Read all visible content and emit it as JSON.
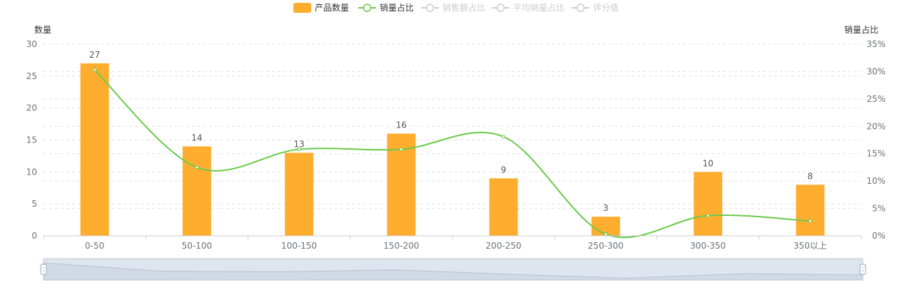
{
  "legend": [
    {
      "name": "产品数量",
      "type": "bar",
      "color": "#FFAD2E",
      "active": true
    },
    {
      "name": "销量占比",
      "type": "line",
      "color": "#6CC94A",
      "active": true
    },
    {
      "name": "销售额占比",
      "type": "line",
      "color": "#cccccc",
      "active": false
    },
    {
      "name": "平均销量占比",
      "type": "line",
      "color": "#cccccc",
      "active": false
    },
    {
      "name": "评分值",
      "type": "line",
      "color": "#cccccc",
      "active": false
    }
  ],
  "colors": {
    "bar": "#FFAD2E",
    "line": "#6CC94A",
    "inactive": "#cccccc",
    "grid": "#e0e0e0",
    "axis": "#cccccc",
    "zoom_fill": "#d1d9e4",
    "zoom_handle": "#a6b3c6"
  },
  "chart_data": {
    "type": "bar",
    "title": "",
    "xlabel": "",
    "ylabel": "数量",
    "ylabel_right": "销量占比",
    "categories": [
      "0-50",
      "50-100",
      "100-150",
      "150-200",
      "200-250",
      "250-300",
      "300-350",
      "350以上"
    ],
    "series": [
      {
        "name": "产品数量",
        "type": "bar",
        "axis": "left",
        "values": [
          27,
          14,
          13,
          16,
          9,
          3,
          10,
          8
        ]
      },
      {
        "name": "销量占比",
        "type": "line",
        "axis": "right",
        "smooth": true,
        "values": [
          30.3,
          12.5,
          15.8,
          15.8,
          18.1,
          0.3,
          3.7,
          2.7
        ]
      }
    ],
    "ylim": [
      0,
      30
    ],
    "yticks": [
      0,
      5,
      10,
      15,
      20,
      25,
      30
    ],
    "ylim_right": [
      0,
      35
    ],
    "yticks_right": [
      "0%",
      "5%",
      "10%",
      "15%",
      "20%",
      "25%",
      "30%",
      "35%"
    ],
    "grid": true,
    "legend_position": "top-center",
    "data_zoom": true
  }
}
